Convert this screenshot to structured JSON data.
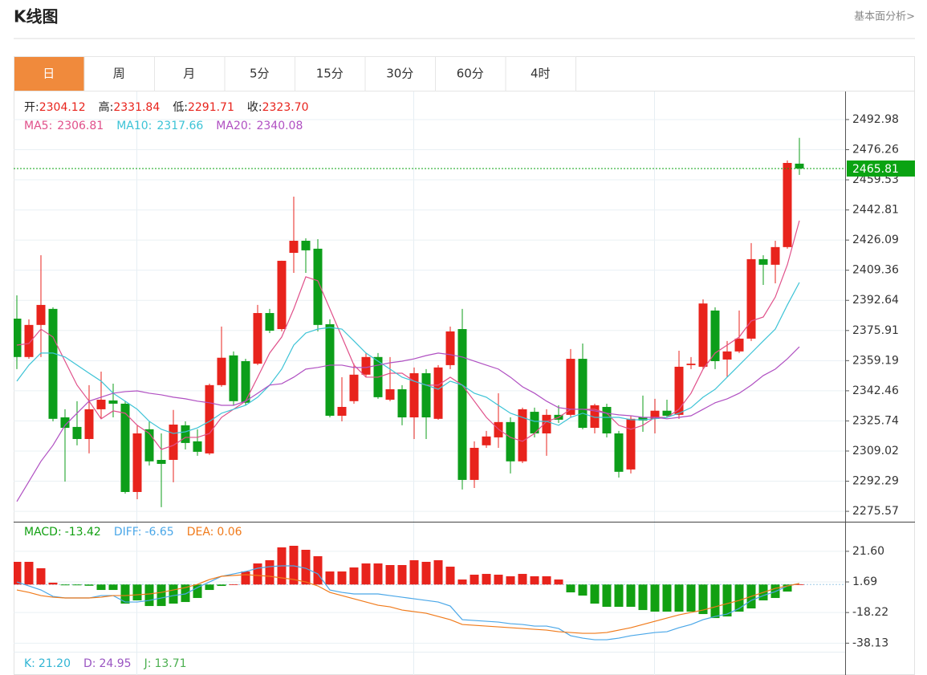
{
  "header": {
    "title": "K线图",
    "link": "基本面分析>"
  },
  "tabs": [
    "日",
    "周",
    "月",
    "5分",
    "15分",
    "30分",
    "60分",
    "4时"
  ],
  "active_tab": 0,
  "chart_data": [
    {
      "type": "candlestick",
      "info": [
        {
          "label": "开:",
          "value": "2304.12"
        },
        {
          "label": "高:",
          "value": "2331.84"
        },
        {
          "label": "低:",
          "value": "2291.71"
        },
        {
          "label": "收:",
          "value": "2323.70"
        }
      ],
      "info_color": "#e8231c",
      "up_color": "#e8231c",
      "down_color": "#0c9e1a",
      "open": [
        2382.5,
        2361.2,
        2379.0,
        2387.9,
        2327.7,
        2322.4,
        2315.7,
        2332.2,
        2337.1,
        2335.3,
        2286.3,
        2321.1,
        2304.1,
        2304.12,
        2323.3,
        2314.4,
        2307.7,
        2345.6,
        2362.1,
        2358.9,
        2357.5,
        2385.6,
        2376.7,
        2419.0,
        2425.7,
        2421.3,
        2379.4,
        2328.6,
        2336.7,
        2351.4,
        2361.2,
        2337.5,
        2343.3,
        2327.7,
        2352.2,
        2326.9,
        2356.7,
        2376.7,
        2293.0,
        2312.2,
        2316.6,
        2325.1,
        2303.3,
        2330.8,
        2318.8,
        2329.1,
        2329.1,
        2360.2,
        2321.9,
        2333.5,
        2318.8,
        2298.8,
        2327.7,
        2326.9,
        2331.4,
        2329.1,
        2356.7,
        2355.8,
        2387.0,
        2359.8,
        2364.3,
        2371.4,
        2415.5,
        2412.4,
        2422.2,
        2468.5
      ],
      "high": [
        2395.4,
        2382.1,
        2417.7,
        2388.8,
        2332.2,
        2336.7,
        2345.6,
        2353.1,
        2346.4,
        2336.7,
        2323.3,
        2325.5,
        2318.8,
        2331.84,
        2325.5,
        2321.1,
        2346.4,
        2378.1,
        2364.3,
        2360.2,
        2390.1,
        2387.9,
        2414.6,
        2450.2,
        2427.1,
        2426.6,
        2382.1,
        2350.0,
        2357.5,
        2363.4,
        2363.4,
        2361.2,
        2345.6,
        2355.4,
        2354.5,
        2356.7,
        2378.1,
        2387.9,
        2314.4,
        2320.2,
        2341.1,
        2327.7,
        2333.1,
        2333.1,
        2332.2,
        2334.4,
        2365.6,
        2368.7,
        2335.3,
        2335.3,
        2320.2,
        2328.6,
        2339.8,
        2338.0,
        2337.5,
        2364.7,
        2361.2,
        2393.2,
        2388.8,
        2370.1,
        2387.0,
        2424.4,
        2417.7,
        2425.7,
        2470.3,
        2482.8
      ],
      "low": [
        2354.5,
        2360.2,
        2361.2,
        2325.5,
        2292.1,
        2312.2,
        2307.7,
        2326.9,
        2327.7,
        2285.4,
        2282.3,
        2301.0,
        2277.9,
        2291.71,
        2309.9,
        2306.4,
        2306.9,
        2344.7,
        2334.4,
        2334.4,
        2356.7,
        2374.5,
        2375.4,
        2407.9,
        2407.9,
        2375.4,
        2327.7,
        2325.5,
        2335.3,
        2350.0,
        2338.0,
        2336.7,
        2323.3,
        2315.7,
        2315.7,
        2326.4,
        2354.5,
        2287.7,
        2288.5,
        2310.8,
        2310.8,
        2296.6,
        2302.3,
        2316.6,
        2306.4,
        2324.6,
        2327.7,
        2321.1,
        2318.8,
        2316.6,
        2294.3,
        2296.6,
        2319.7,
        2318.8,
        2327.7,
        2326.9,
        2354.5,
        2354.5,
        2354.5,
        2350.0,
        2363.4,
        2370.1,
        2401.2,
        2402.1,
        2421.3,
        2462.3
      ],
      "close": [
        2361.2,
        2379.0,
        2390.1,
        2326.9,
        2321.9,
        2315.7,
        2332.2,
        2337.5,
        2335.3,
        2286.3,
        2318.8,
        2303.3,
        2301.9,
        2323.7,
        2313.5,
        2308.6,
        2345.6,
        2360.8,
        2336.7,
        2335.8,
        2385.6,
        2375.8,
        2414.6,
        2425.7,
        2420.4,
        2379.0,
        2328.6,
        2333.5,
        2351.4,
        2361.2,
        2338.9,
        2343.3,
        2327.7,
        2352.2,
        2327.7,
        2355.4,
        2375.4,
        2293.0,
        2310.8,
        2317.1,
        2325.1,
        2303.3,
        2332.2,
        2318.8,
        2329.1,
        2326.4,
        2360.2,
        2321.9,
        2334.4,
        2318.8,
        2297.5,
        2326.9,
        2326.0,
        2331.4,
        2328.6,
        2355.8,
        2357.5,
        2390.9,
        2358.9,
        2364.3,
        2371.4,
        2415.5,
        2412.4,
        2422.2,
        2468.9,
        2465.81
      ],
      "series": [
        {
          "name": "MA5:",
          "current": "2306.81",
          "color": "#e0508a",
          "values": [
            2367.8,
            2368.7,
            2376.7,
            2372.3,
            2358.9,
            2345.6,
            2336.7,
            2326.9,
            2331.3,
            2330.0,
            2323.3,
            2318.8,
            2309.9,
            2312.2,
            2316.6,
            2316.6,
            2318.8,
            2327.7,
            2332.2,
            2336.7,
            2350.0,
            2363.4,
            2372.3,
            2387.9,
            2405.7,
            2403.5,
            2387.9,
            2372.3,
            2356.7,
            2350.0,
            2350.0,
            2352.2,
            2352.2,
            2347.8,
            2345.6,
            2345.6,
            2350.0,
            2345.6,
            2336.7,
            2327.7,
            2321.1,
            2316.6,
            2314.4,
            2318.8,
            2325.5,
            2327.7,
            2332.2,
            2332.2,
            2332.2,
            2330.0,
            2323.3,
            2321.1,
            2323.3,
            2327.7,
            2327.7,
            2332.2,
            2341.1,
            2354.5,
            2363.4,
            2367.8,
            2372.3,
            2381.2,
            2383.4,
            2394.5,
            2412.4,
            2436.9
          ]
        },
        {
          "name": "MA10:",
          "current": "2317.66",
          "color": "#3cc3d6",
          "values": [
            2347.8,
            2356.7,
            2363.4,
            2363.4,
            2361.2,
            2356.7,
            2352.2,
            2347.8,
            2341.1,
            2336.7,
            2332.2,
            2325.5,
            2321.1,
            2318.8,
            2319.7,
            2321.9,
            2325.5,
            2330.0,
            2332.2,
            2334.4,
            2338.9,
            2345.6,
            2354.5,
            2367.8,
            2374.5,
            2376.7,
            2377.6,
            2376.7,
            2370.1,
            2363.4,
            2358.9,
            2354.5,
            2350.0,
            2347.8,
            2345.6,
            2343.3,
            2347.8,
            2345.6,
            2341.1,
            2338.9,
            2334.4,
            2330.0,
            2327.7,
            2325.5,
            2325.5,
            2323.3,
            2327.7,
            2330.0,
            2327.7,
            2327.7,
            2327.7,
            2326.4,
            2326.4,
            2326.9,
            2327.7,
            2330.0,
            2333.1,
            2338.9,
            2343.3,
            2350.0,
            2356.7,
            2363.4,
            2370.1,
            2376.7,
            2390.1,
            2402.6
          ]
        },
        {
          "name": "MA20:",
          "current": "2340.08",
          "color": "#b050c2",
          "values": [
            2281.0,
            2292.1,
            2303.3,
            2312.2,
            2323.3,
            2330.0,
            2336.7,
            2338.9,
            2341.1,
            2342.0,
            2342.4,
            2341.1,
            2340.2,
            2338.9,
            2338.0,
            2336.7,
            2335.8,
            2334.4,
            2334.4,
            2336.7,
            2341.1,
            2345.6,
            2346.4,
            2350.0,
            2354.5,
            2355.4,
            2356.7,
            2356.7,
            2355.4,
            2355.4,
            2356.7,
            2358.0,
            2358.9,
            2360.2,
            2362.0,
            2363.4,
            2362.5,
            2361.2,
            2358.9,
            2356.7,
            2354.5,
            2350.0,
            2344.7,
            2341.1,
            2336.7,
            2333.1,
            2332.2,
            2332.2,
            2331.3,
            2330.0,
            2329.1,
            2328.6,
            2327.7,
            2327.7,
            2326.9,
            2327.7,
            2328.6,
            2332.2,
            2335.8,
            2338.0,
            2341.1,
            2345.6,
            2350.9,
            2354.5,
            2360.2,
            2366.9
          ]
        }
      ],
      "last_price": 2465.81,
      "last_price_color": "#0aa312",
      "ylim": [
        2270.7,
        2508.1
      ],
      "yticks": [
        2275.57,
        2292.29,
        2309.02,
        2325.74,
        2342.46,
        2359.19,
        2375.91,
        2392.64,
        2409.36,
        2426.09,
        2442.81,
        2459.53,
        2476.26,
        2492.98
      ],
      "grid": true
    },
    {
      "type": "macd",
      "name": "MACD:",
      "current": "-13.42",
      "name_color": "#12a012",
      "up_color": "#e8231c",
      "down_color": "#12a012",
      "values": [
        14.75,
        14.75,
        10.57,
        1.2,
        -0.5,
        -0.5,
        -0.8,
        -3.53,
        -3.53,
        -12.41,
        -10.32,
        -13.98,
        -13.98,
        -12.41,
        -11.37,
        -8.75,
        -3.53,
        -0.92,
        0.12,
        8.48,
        13.7,
        15.79,
        24.15,
        25.19,
        22.58,
        18.4,
        8.48,
        8.48,
        11.09,
        13.7,
        13.7,
        12.66,
        12.66,
        15.79,
        14.75,
        15.79,
        11.61,
        3.26,
        6.39,
        6.91,
        6.39,
        5.35,
        6.91,
        5.35,
        5.35,
        3.26,
        -5.1,
        -7.19,
        -12.41,
        -14.5,
        -14.5,
        -14.5,
        -16.59,
        -17.63,
        -17.63,
        -17.63,
        -17.63,
        -19.2,
        -21.81,
        -20.76,
        -17.63,
        -15.54,
        -10.32,
        -8.75,
        -4.58,
        0.12
      ],
      "series": [
        {
          "name": "DIFF:",
          "current": "-6.65",
          "color": "#4aa7e8",
          "values": [
            1.69,
            -0.92,
            -3.53,
            -7.71,
            -8.75,
            -8.75,
            -8.75,
            -7.19,
            -7.19,
            -11.37,
            -11.37,
            -10.32,
            -8.75,
            -7.19,
            -6.14,
            -1.97,
            1.69,
            5.35,
            6.91,
            8.48,
            10.57,
            11.61,
            12.13,
            12.13,
            10.57,
            6.91,
            -3.53,
            -5.1,
            -6.14,
            -6.14,
            -6.14,
            -7.19,
            -8.23,
            -9.28,
            -10.32,
            -11.37,
            -13.98,
            -22.85,
            -23.38,
            -23.9,
            -24.42,
            -25.46,
            -25.99,
            -27.03,
            -27.03,
            -28.6,
            -33.3,
            -34.87,
            -35.91,
            -35.91,
            -34.87,
            -33.3,
            -32.25,
            -31.21,
            -30.69,
            -28.08,
            -25.99,
            -22.85,
            -20.76,
            -19.2,
            -15.54,
            -10.32,
            -7.19,
            -4.58,
            -0.92,
            0.65
          ]
        },
        {
          "name": "DEA:",
          "current": "0.06",
          "color": "#f07a1a",
          "values": [
            -3.53,
            -5.1,
            -7.19,
            -8.23,
            -8.75,
            -8.75,
            -8.75,
            -8.23,
            -7.19,
            -7.19,
            -6.67,
            -6.14,
            -5.1,
            -3.53,
            -1.97,
            0.12,
            3.26,
            5.35,
            5.87,
            6.39,
            5.87,
            5.35,
            4.3,
            3.26,
            1.69,
            -0.92,
            -5.1,
            -7.19,
            -9.28,
            -11.37,
            -13.45,
            -14.5,
            -16.59,
            -17.63,
            -18.68,
            -20.76,
            -22.85,
            -25.99,
            -26.51,
            -27.03,
            -27.55,
            -28.08,
            -28.6,
            -29.12,
            -29.64,
            -30.69,
            -31.21,
            -31.73,
            -31.73,
            -31.21,
            -29.64,
            -28.08,
            -25.99,
            -23.9,
            -21.81,
            -19.72,
            -18.15,
            -16.59,
            -14.5,
            -12.41,
            -10.32,
            -7.71,
            -5.1,
            -2.49,
            -0.92,
            0.65
          ]
        }
      ],
      "ylim": [
        -43.7,
        40.85
      ],
      "yticks": [
        {
          "value": -38.13,
          "label": "-38.13"
        },
        {
          "value": -18.22,
          "label": "-18.22"
        },
        1.69,
        {
          "value": 21.6,
          "label": "21.60"
        }
      ],
      "grid": true
    }
  ],
  "kdj": [
    {
      "label": "K:",
      "value": "21.20",
      "color": "#31b5d4"
    },
    {
      "label": "D:",
      "value": "24.95",
      "color": "#9a55c2"
    },
    {
      "label": "J:",
      "value": "13.71",
      "color": "#4caf50"
    }
  ]
}
